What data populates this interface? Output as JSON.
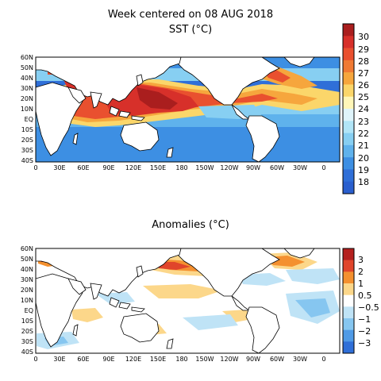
{
  "top_panel": {
    "title": "Week centered on 08 AUG 2018",
    "subtitle": "SST (°C)",
    "lat_labels": [
      "60N",
      "50N",
      "40N",
      "30N",
      "20N",
      "10N",
      "EQ",
      "10S",
      "20S",
      "30S",
      "40S"
    ],
    "lon_labels": [
      "0",
      "30E",
      "60E",
      "90E",
      "120E",
      "150E",
      "180",
      "150W",
      "120W",
      "90W",
      "60W",
      "30W",
      "0"
    ],
    "colorbar_labels": [
      "30",
      "29",
      "28",
      "27",
      "26",
      "25",
      "24",
      "23",
      "22",
      "21",
      "20",
      "19",
      "18"
    ],
    "colorbar_colors": [
      "#aa1e1e",
      "#d7302a",
      "#e9502f",
      "#f07a34",
      "#f6a63d",
      "#fbd66a",
      "#fff6b8",
      "#dff4fb",
      "#b1e5f7",
      "#87cff2",
      "#5fb2ec",
      "#3d8fe3",
      "#2f6fd8",
      "#2a5fce"
    ]
  },
  "bottom_panel": {
    "title": "Anomalies (°C)",
    "lat_labels": [
      "60N",
      "50N",
      "40N",
      "30N",
      "20N",
      "10N",
      "EQ",
      "10S",
      "20S",
      "30S",
      "40S"
    ],
    "lon_labels": [
      "0",
      "30E",
      "60E",
      "90E",
      "120E",
      "150E",
      "180",
      "150W",
      "120W",
      "90W",
      "60W",
      "30W",
      "0"
    ],
    "colorbar_labels": [
      "3",
      "2",
      "1",
      "0.5",
      "−0.5",
      "−1",
      "−2",
      "−3"
    ],
    "colorbar_colors": [
      "#b4201e",
      "#e0452b",
      "#f4902f",
      "#fcd78a",
      "#ffffff",
      "#bfe3f6",
      "#86c6f0",
      "#4f9ae6",
      "#2f6fd8"
    ]
  }
}
